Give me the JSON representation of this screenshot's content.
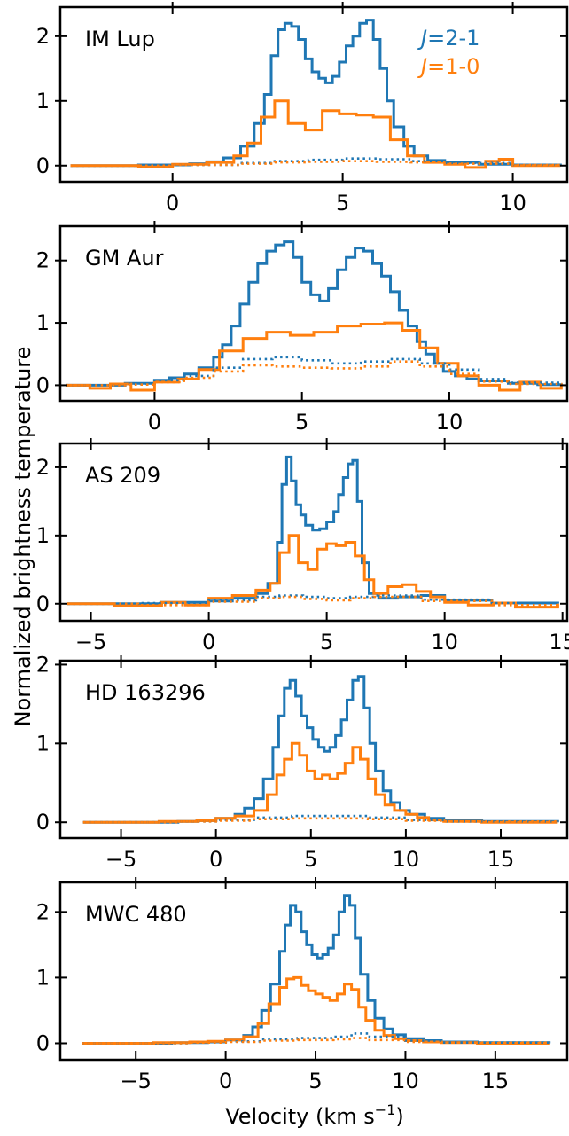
{
  "ylabel": "Normalized brightness temperature",
  "xlabel_main": "Velocity (km s",
  "xlabel_sup": "−1",
  "xlabel_end": ")",
  "legend": [
    {
      "prefix": "J",
      "text": "=2-1",
      "color": "#1f77b4"
    },
    {
      "prefix": "J",
      "text": "=1-0",
      "color": "#ff7f0e"
    }
  ],
  "colors": {
    "j21": "#1f77b4",
    "j10": "#ff7f0e"
  },
  "chart_data": [
    {
      "type": "line",
      "title": "IM Lup",
      "xlim": [
        -3.3,
        11.6
      ],
      "ylim": [
        -0.25,
        2.45
      ],
      "xticks": [
        0,
        5,
        10
      ],
      "yticks": [
        0,
        1,
        2
      ],
      "series": [
        {
          "name": "J=2-1",
          "style": "solid",
          "color": "#1f77b4",
          "x": [
            -3,
            -2,
            -1,
            0,
            0.5,
            1,
            1.5,
            2,
            2.4,
            2.7,
            2.9,
            3.1,
            3.3,
            3.5,
            3.7,
            3.9,
            4.1,
            4.3,
            4.5,
            4.7,
            4.9,
            5.1,
            5.3,
            5.5,
            5.7,
            5.9,
            6.1,
            6.3,
            6.5,
            6.8,
            7.1,
            7.5,
            8,
            9,
            10,
            11.4
          ],
          "y": [
            0,
            0,
            0.01,
            0.01,
            0.03,
            0.06,
            0.12,
            0.3,
            0.65,
            1.1,
            1.7,
            2.1,
            2.2,
            2.15,
            1.95,
            1.65,
            1.45,
            1.35,
            1.28,
            1.38,
            1.6,
            1.85,
            2.0,
            2.2,
            2.25,
            1.95,
            1.5,
            1.0,
            0.6,
            0.3,
            0.15,
            0.08,
            0.05,
            0.02,
            0.01,
            0
          ]
        },
        {
          "name": "J=1-0",
          "style": "solid",
          "color": "#ff7f0e",
          "x": [
            -3,
            -1,
            0,
            1,
            1.8,
            2.2,
            2.6,
            3.0,
            3.4,
            3.9,
            4.4,
            4.9,
            5.4,
            5.9,
            6.4,
            6.9,
            7.4,
            8.0,
            8.6,
            9.2,
            9.6,
            10.0,
            11.4
          ],
          "y": [
            0,
            -0.02,
            0.02,
            0.05,
            0.15,
            0.35,
            0.75,
            1.0,
            0.65,
            0.55,
            0.85,
            0.8,
            0.78,
            0.75,
            0.4,
            0.15,
            0.05,
            0.02,
            -0.03,
            0.07,
            0.1,
            0.0,
            0
          ]
        },
        {
          "name": "J=2-1 (dotted)",
          "style": "dotted",
          "color": "#1f77b4",
          "x": [
            -3,
            0,
            2,
            3,
            4,
            5,
            6,
            7,
            8,
            10,
            11.4
          ],
          "y": [
            0,
            0.01,
            0.04,
            0.07,
            0.09,
            0.11,
            0.1,
            0.07,
            0.04,
            0.01,
            0
          ]
        },
        {
          "name": "J=1-0 (dotted)",
          "style": "dotted",
          "color": "#ff7f0e",
          "x": [
            -3,
            0,
            2,
            3,
            4,
            5,
            6,
            7,
            8,
            10,
            11.4
          ],
          "y": [
            0,
            0.01,
            0.03,
            0.05,
            0.06,
            0.07,
            0.06,
            0.05,
            0.03,
            0.01,
            0
          ]
        }
      ]
    },
    {
      "type": "line",
      "title": "GM Aur",
      "xlim": [
        -3.2,
        14.0
      ],
      "ylim": [
        -0.25,
        2.55
      ],
      "xticks": [
        0,
        5,
        10
      ],
      "yticks": [
        0,
        1,
        2
      ],
      "series": [
        {
          "name": "J=2-1",
          "style": "solid",
          "color": "#1f77b4",
          "x": [
            -3,
            -2,
            -1,
            0,
            0.5,
            1,
            1.5,
            2,
            2.3,
            2.6,
            2.9,
            3.2,
            3.5,
            3.8,
            4.1,
            4.4,
            4.7,
            5.0,
            5.3,
            5.6,
            5.9,
            6.2,
            6.5,
            6.8,
            7.1,
            7.4,
            7.7,
            8.0,
            8.3,
            8.6,
            8.9,
            9.2,
            9.5,
            9.8,
            10.2,
            10.6,
            11,
            12,
            13,
            13.8
          ],
          "y": [
            0,
            0,
            0.03,
            0.08,
            0.12,
            0.18,
            0.28,
            0.45,
            0.65,
            0.95,
            1.3,
            1.65,
            1.95,
            2.15,
            2.25,
            2.3,
            2.05,
            1.65,
            1.45,
            1.35,
            1.55,
            1.85,
            2.05,
            2.2,
            2.15,
            1.95,
            1.75,
            1.5,
            1.2,
            0.95,
            0.7,
            0.5,
            0.35,
            0.22,
            0.15,
            0.1,
            0.07,
            0.03,
            0.01,
            0
          ]
        },
        {
          "name": "J=1-0",
          "style": "solid",
          "color": "#ff7f0e",
          "x": [
            -3,
            -2.2,
            -1.5,
            -0.8,
            0,
            0.8,
            1.5,
            2.2,
            3.0,
            3.8,
            4.6,
            5.4,
            6.2,
            7.0,
            7.8,
            8.4,
            9.0,
            9.6,
            10.3,
            11.0,
            11.7,
            12.4,
            13.1,
            13.8
          ],
          "y": [
            0,
            -0.05,
            0.02,
            -0.08,
            0.05,
            0.1,
            0.25,
            0.55,
            0.75,
            0.85,
            0.8,
            0.85,
            0.95,
            0.98,
            1.0,
            0.88,
            0.6,
            0.35,
            0.15,
            0.0,
            -0.08,
            0.05,
            -0.05,
            0
          ]
        },
        {
          "name": "J=2-1 (dotted)",
          "style": "dotted",
          "color": "#1f77b4",
          "x": [
            -3,
            -1,
            0,
            1,
            2,
            3,
            4,
            5,
            6,
            7,
            8,
            9,
            10,
            11,
            12,
            13.8
          ],
          "y": [
            0,
            0.02,
            0.08,
            0.15,
            0.28,
            0.42,
            0.45,
            0.4,
            0.35,
            0.38,
            0.42,
            0.35,
            0.25,
            0.1,
            0.04,
            0
          ]
        },
        {
          "name": "J=1-0 (dotted)",
          "style": "dotted",
          "color": "#ff7f0e",
          "x": [
            -3,
            -1,
            0,
            1,
            2,
            3,
            4,
            5,
            6,
            7,
            8,
            9,
            10,
            11,
            12,
            13.8
          ],
          "y": [
            0,
            0.01,
            0.05,
            0.12,
            0.22,
            0.32,
            0.3,
            0.28,
            0.27,
            0.3,
            0.38,
            0.3,
            0.18,
            0.06,
            0.02,
            0
          ]
        }
      ]
    },
    {
      "type": "line",
      "title": "AS 209",
      "xlim": [
        -6.3,
        15.2
      ],
      "ylim": [
        -0.25,
        2.35
      ],
      "xticks": [
        -5,
        0,
        5,
        10,
        15
      ],
      "yticks": [
        0,
        1,
        2
      ],
      "series": [
        {
          "name": "J=2-1",
          "style": "solid",
          "color": "#1f77b4",
          "x": [
            -6,
            -4,
            -2,
            0,
            1,
            2,
            2.5,
            2.9,
            3.1,
            3.3,
            3.5,
            3.7,
            3.9,
            4.1,
            4.4,
            4.7,
            5.0,
            5.3,
            5.5,
            5.7,
            5.9,
            6.1,
            6.3,
            6.5,
            6.8,
            7.2,
            8,
            9,
            10,
            12,
            14.8
          ],
          "y": [
            0,
            0,
            0.02,
            0.04,
            0.08,
            0.15,
            0.3,
            0.9,
            1.75,
            2.15,
            1.8,
            1.45,
            1.3,
            1.15,
            1.08,
            1.1,
            1.2,
            1.35,
            1.6,
            1.85,
            2.05,
            2.1,
            1.5,
            0.6,
            0.15,
            0.08,
            0.1,
            0.12,
            0.05,
            0.01,
            0
          ]
        },
        {
          "name": "J=1-0",
          "style": "solid",
          "color": "#ff7f0e",
          "x": [
            -6,
            -4,
            -2,
            -1,
            0,
            1,
            2,
            2.6,
            3.0,
            3.4,
            3.8,
            4.2,
            4.6,
            5.0,
            5.4,
            5.8,
            6.2,
            6.6,
            7.0,
            7.6,
            8.2,
            8.8,
            9.4,
            10.0,
            11,
            12,
            13,
            14.8
          ],
          "y": [
            0,
            -0.03,
            0.02,
            -0.02,
            0.08,
            0.12,
            0.2,
            0.3,
            0.75,
            1.0,
            0.6,
            0.5,
            0.8,
            0.88,
            0.85,
            0.9,
            0.7,
            0.35,
            0.15,
            0.25,
            0.28,
            0.18,
            0.1,
            0.02,
            -0.02,
            0.01,
            -0.05,
            0
          ]
        },
        {
          "name": "J=2-1 (dotted)",
          "style": "dotted",
          "color": "#1f77b4",
          "x": [
            -6,
            -3,
            0,
            2,
            3,
            4,
            5,
            6,
            7,
            9,
            12,
            14.8
          ],
          "y": [
            0,
            0.01,
            0.05,
            0.1,
            0.12,
            0.1,
            0.08,
            0.1,
            0.12,
            0.06,
            0.01,
            0
          ]
        },
        {
          "name": "J=1-0 (dotted)",
          "style": "dotted",
          "color": "#ff7f0e",
          "x": [
            -6,
            -3,
            0,
            2,
            3,
            4,
            5,
            6,
            7,
            9,
            12,
            14.8
          ],
          "y": [
            0,
            -0.02,
            0.03,
            0.08,
            0.1,
            0.07,
            0.05,
            0.08,
            0.1,
            0.04,
            -0.02,
            0
          ]
        }
      ]
    },
    {
      "type": "line",
      "title": "HD 163296",
      "xlim": [
        -8.2,
        18.5
      ],
      "ylim": [
        -0.2,
        2.05
      ],
      "xticks": [
        -5,
        0,
        5,
        10,
        15
      ],
      "yticks": [
        0,
        1,
        2
      ],
      "series": [
        {
          "name": "J=2-1",
          "style": "solid",
          "color": "#1f77b4",
          "x": [
            -7,
            -4,
            -2,
            -1,
            0,
            1,
            1.5,
            2,
            2.5,
            3.0,
            3.3,
            3.6,
            3.9,
            4.2,
            4.5,
            4.8,
            5.1,
            5.4,
            5.7,
            6.0,
            6.3,
            6.6,
            6.9,
            7.2,
            7.5,
            7.8,
            8.1,
            8.4,
            8.8,
            9.2,
            9.7,
            10.2,
            11,
            12,
            14,
            18
          ],
          "y": [
            0,
            0,
            0.01,
            0.02,
            0.05,
            0.1,
            0.18,
            0.3,
            0.55,
            0.95,
            1.35,
            1.7,
            1.8,
            1.6,
            1.35,
            1.2,
            1.05,
            0.95,
            0.9,
            0.95,
            1.1,
            1.3,
            1.55,
            1.8,
            1.85,
            1.45,
            1.0,
            0.65,
            0.4,
            0.25,
            0.15,
            0.1,
            0.05,
            0.02,
            0.01,
            0
          ]
        },
        {
          "name": "J=1-0",
          "style": "solid",
          "color": "#ff7f0e",
          "x": [
            -7,
            -3,
            -1,
            0,
            1,
            2,
            2.7,
            3.2,
            3.6,
            4.0,
            4.4,
            4.8,
            5.2,
            5.6,
            6.0,
            6.4,
            6.8,
            7.2,
            7.6,
            8.0,
            8.4,
            8.9,
            9.4,
            10.0,
            10.6,
            11.2,
            12,
            14,
            18
          ],
          "y": [
            0,
            0.01,
            0.02,
            0.05,
            0.08,
            0.15,
            0.35,
            0.6,
            0.8,
            1.0,
            0.85,
            0.65,
            0.55,
            0.6,
            0.55,
            0.62,
            0.75,
            0.95,
            0.8,
            0.55,
            0.35,
            0.22,
            0.15,
            0.1,
            0.06,
            0.03,
            0.01,
            0,
            0
          ]
        },
        {
          "name": "J=2-1 (dotted)",
          "style": "dotted",
          "color": "#1f77b4",
          "x": [
            -7,
            -2,
            0,
            2,
            4,
            6,
            8,
            10,
            12,
            18
          ],
          "y": [
            0,
            0.01,
            0.03,
            0.06,
            0.08,
            0.08,
            0.06,
            0.03,
            0.01,
            0
          ]
        },
        {
          "name": "J=1-0 (dotted)",
          "style": "dotted",
          "color": "#ff7f0e",
          "x": [
            -7,
            -2,
            0,
            2,
            4,
            6,
            8,
            10,
            12,
            18
          ],
          "y": [
            0,
            0.01,
            0.02,
            0.04,
            0.05,
            0.05,
            0.04,
            0.02,
            0.01,
            0
          ]
        }
      ]
    },
    {
      "type": "line",
      "title": "MWC 480",
      "xlim": [
        -9.2,
        19.0
      ],
      "ylim": [
        -0.25,
        2.45
      ],
      "xticks": [
        -5,
        0,
        5,
        10,
        15
      ],
      "yticks": [
        0,
        1,
        2
      ],
      "series": [
        {
          "name": "J=2-1",
          "style": "solid",
          "color": "#1f77b4",
          "x": [
            -8,
            -5,
            -3,
            -1,
            0,
            1,
            1.5,
            2,
            2.5,
            3.0,
            3.3,
            3.6,
            3.9,
            4.2,
            4.5,
            4.8,
            5.1,
            5.4,
            5.7,
            6.0,
            6.3,
            6.6,
            6.9,
            7.2,
            7.5,
            7.9,
            8.3,
            8.8,
            9.3,
            10,
            11,
            12,
            14,
            18
          ],
          "y": [
            0,
            0,
            0.01,
            0.02,
            0.05,
            0.12,
            0.25,
            0.5,
            0.9,
            1.4,
            1.8,
            2.1,
            2.0,
            1.7,
            1.5,
            1.35,
            1.3,
            1.35,
            1.45,
            1.65,
            2.0,
            2.25,
            2.1,
            1.6,
            1.05,
            0.65,
            0.38,
            0.22,
            0.13,
            0.07,
            0.04,
            0.02,
            0.01,
            0
          ]
        },
        {
          "name": "J=1-0",
          "style": "solid",
          "color": "#ff7f0e",
          "x": [
            -8,
            -4,
            -2,
            -1,
            0,
            1,
            1.8,
            2.4,
            3.0,
            3.4,
            3.8,
            4.2,
            4.6,
            5.0,
            5.4,
            5.8,
            6.2,
            6.6,
            7.0,
            7.4,
            7.8,
            8.3,
            8.8,
            9.4,
            10.0,
            11,
            12,
            14,
            18
          ],
          "y": [
            0,
            0.01,
            0.02,
            0.03,
            0.05,
            0.1,
            0.3,
            0.6,
            0.85,
            0.98,
            1.0,
            0.88,
            0.8,
            0.75,
            0.7,
            0.65,
            0.75,
            0.9,
            0.82,
            0.55,
            0.35,
            0.2,
            0.12,
            0.07,
            0.04,
            0.02,
            0.01,
            0,
            0
          ]
        },
        {
          "name": "J=2-1 (dotted)",
          "style": "dotted",
          "color": "#1f77b4",
          "x": [
            -8,
            -2,
            0,
            2,
            4,
            6,
            7,
            8,
            10,
            12,
            18
          ],
          "y": [
            0,
            0.01,
            0.03,
            0.06,
            0.08,
            0.1,
            0.15,
            0.1,
            0.04,
            0.01,
            0
          ]
        },
        {
          "name": "J=1-0 (dotted)",
          "style": "dotted",
          "color": "#ff7f0e",
          "x": [
            -8,
            -2,
            0,
            2,
            4,
            6,
            7,
            8,
            10,
            12,
            18
          ],
          "y": [
            0,
            0.01,
            0.02,
            0.04,
            0.05,
            0.06,
            0.08,
            0.05,
            0.02,
            0.01,
            0
          ]
        }
      ]
    }
  ]
}
